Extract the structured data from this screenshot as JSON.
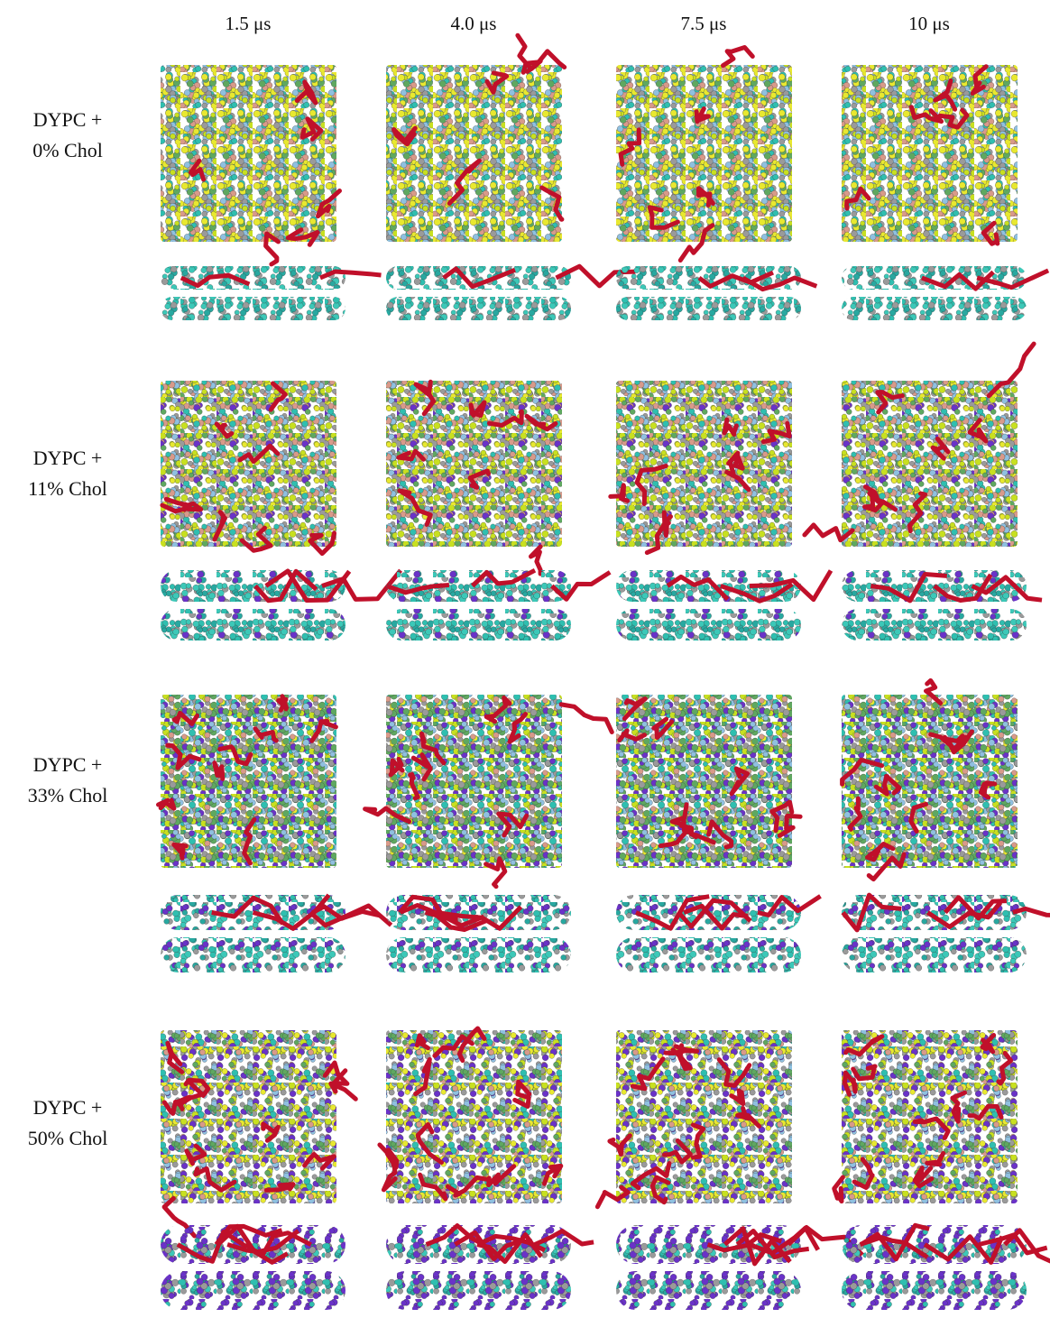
{
  "columns": [
    "1.5 μs",
    "4.0 μs",
    "7.5 μs",
    "10 μs"
  ],
  "rows": [
    {
      "lines": [
        "DYPC +",
        "0% Chol"
      ]
    },
    {
      "lines": [
        "DYPC +",
        "11% Chol"
      ]
    },
    {
      "lines": [
        "DYPC +",
        "33% Chol"
      ]
    },
    {
      "lines": [
        "DYPC +",
        "50% Chol"
      ]
    }
  ]
}
